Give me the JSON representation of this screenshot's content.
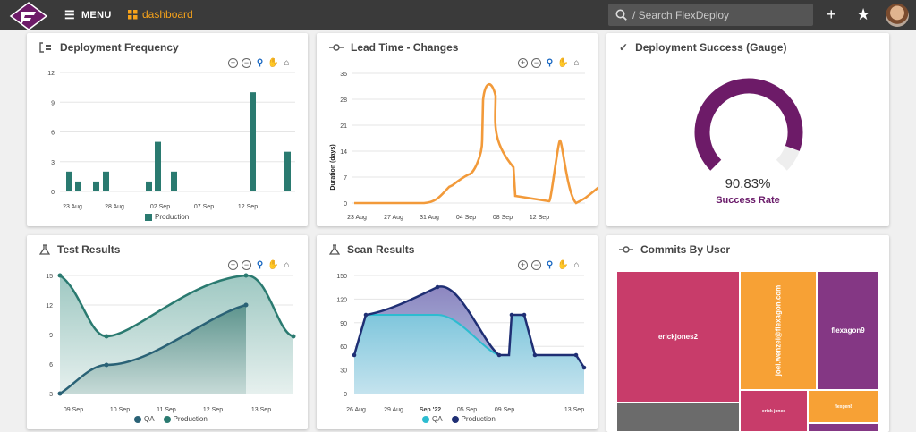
{
  "header": {
    "menu_label": "MENU",
    "breadcrumb": "dashboard",
    "search_placeholder": "/ Search FlexDeploy"
  },
  "colors": {
    "topbar": "#3a3a3a",
    "teal": "#2a7a70",
    "orange": "#f29a3a",
    "purple": "#6d1b68",
    "navy": "#1f2f74",
    "cyan": "#2cbcd0"
  },
  "cards": {
    "freq": {
      "title": "Deployment Frequency",
      "legend": "Production",
      "chart_data": {
        "type": "bar",
        "y_ticks": [
          "12",
          "9",
          "6",
          "3",
          "0"
        ],
        "x_ticks": [
          "23 Aug",
          "28 Aug",
          "02 Sep",
          "07 Sep",
          "12 Sep"
        ],
        "ylim": [
          0,
          12
        ],
        "series": [
          {
            "name": "Production",
            "values": [
              2,
              1,
              1,
              2,
              1,
              5,
              2,
              10,
              4
            ]
          }
        ]
      }
    },
    "lead": {
      "title": "Lead Time - Changes",
      "ylabel": "Duration (days)",
      "chart_data": {
        "type": "line",
        "y_ticks": [
          "35",
          "28",
          "21",
          "14",
          "7",
          "0"
        ],
        "x_ticks": [
          "23 Aug",
          "27 Aug",
          "31 Aug",
          "04 Sep",
          "08 Sep",
          "12 Sep"
        ],
        "ylim": [
          0,
          35
        ]
      }
    },
    "gauge": {
      "title": "Deployment Success (Gauge)",
      "value": "90.83%",
      "label": "Success Rate",
      "fraction": 0.9083
    },
    "tests": {
      "title": "Test Results",
      "legend_a": "QA",
      "legend_b": "Production",
      "chart_data": {
        "type": "area",
        "y_ticks": [
          "15",
          "12",
          "9",
          "6",
          "3"
        ],
        "x_ticks": [
          "09 Sep",
          "10 Sep",
          "11 Sep",
          "12 Sep",
          "13 Sep"
        ],
        "ylim": [
          3,
          15
        ]
      }
    },
    "scan": {
      "title": "Scan Results",
      "legend_a": "QA",
      "legend_b": "Production",
      "chart_data": {
        "type": "area",
        "y_ticks": [
          "150",
          "120",
          "90",
          "60",
          "30",
          "0"
        ],
        "x_ticks": [
          "26 Aug",
          "29 Aug",
          "Sep '22",
          "05 Sep",
          "09 Sep",
          "13 Sep"
        ],
        "ylim": [
          0,
          150
        ]
      }
    },
    "commits": {
      "title": "Commits By User",
      "users": [
        "erickjones2",
        "joel.wenzel@flexagon.com",
        "flexagon9",
        "erick jones",
        "flexgen8"
      ]
    }
  }
}
